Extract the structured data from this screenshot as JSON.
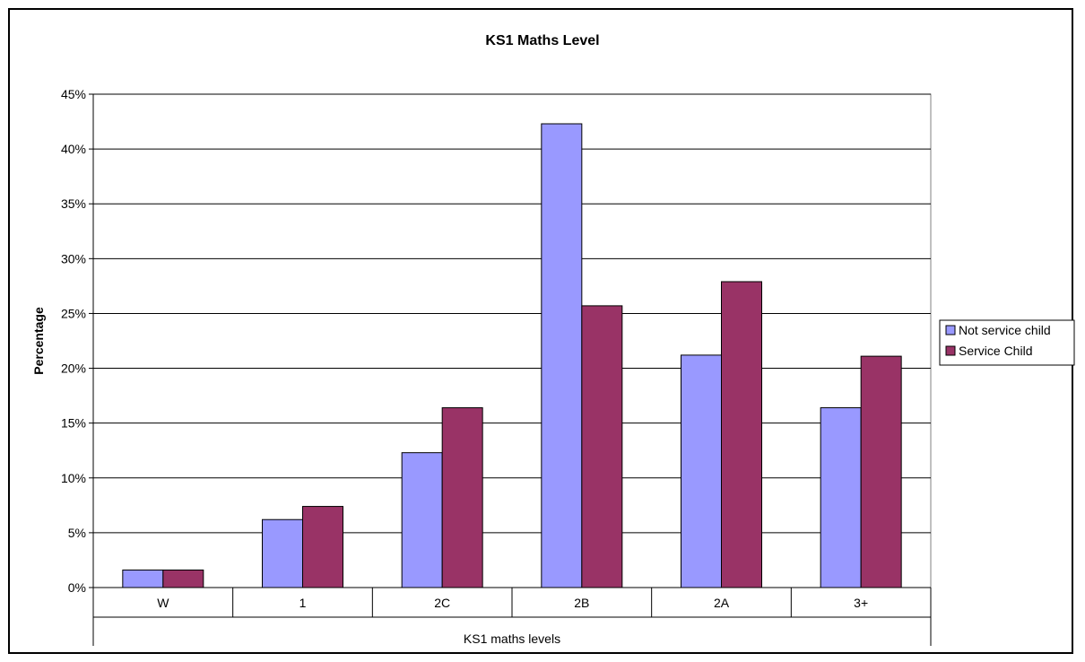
{
  "chart_data": {
    "type": "bar",
    "title": "KS1 Maths Level",
    "xlabel": "KS1 maths levels",
    "ylabel": "Percentage",
    "categories": [
      "W",
      "1",
      "2C",
      "2B",
      "2A",
      "3+"
    ],
    "ylim": [
      0,
      45
    ],
    "ytick_labels": [
      "0%",
      "5%",
      "10%",
      "15%",
      "20%",
      "25%",
      "30%",
      "35%",
      "40%",
      "45%"
    ],
    "grid": true,
    "legend_position": "right",
    "series": [
      {
        "name": "Not service child",
        "color": "#9999ff",
        "values": [
          1.6,
          6.2,
          12.3,
          42.3,
          21.2,
          16.4
        ]
      },
      {
        "name": "Service Child",
        "color": "#993366",
        "values": [
          1.6,
          7.4,
          16.4,
          25.7,
          27.9,
          21.1
        ]
      }
    ]
  }
}
